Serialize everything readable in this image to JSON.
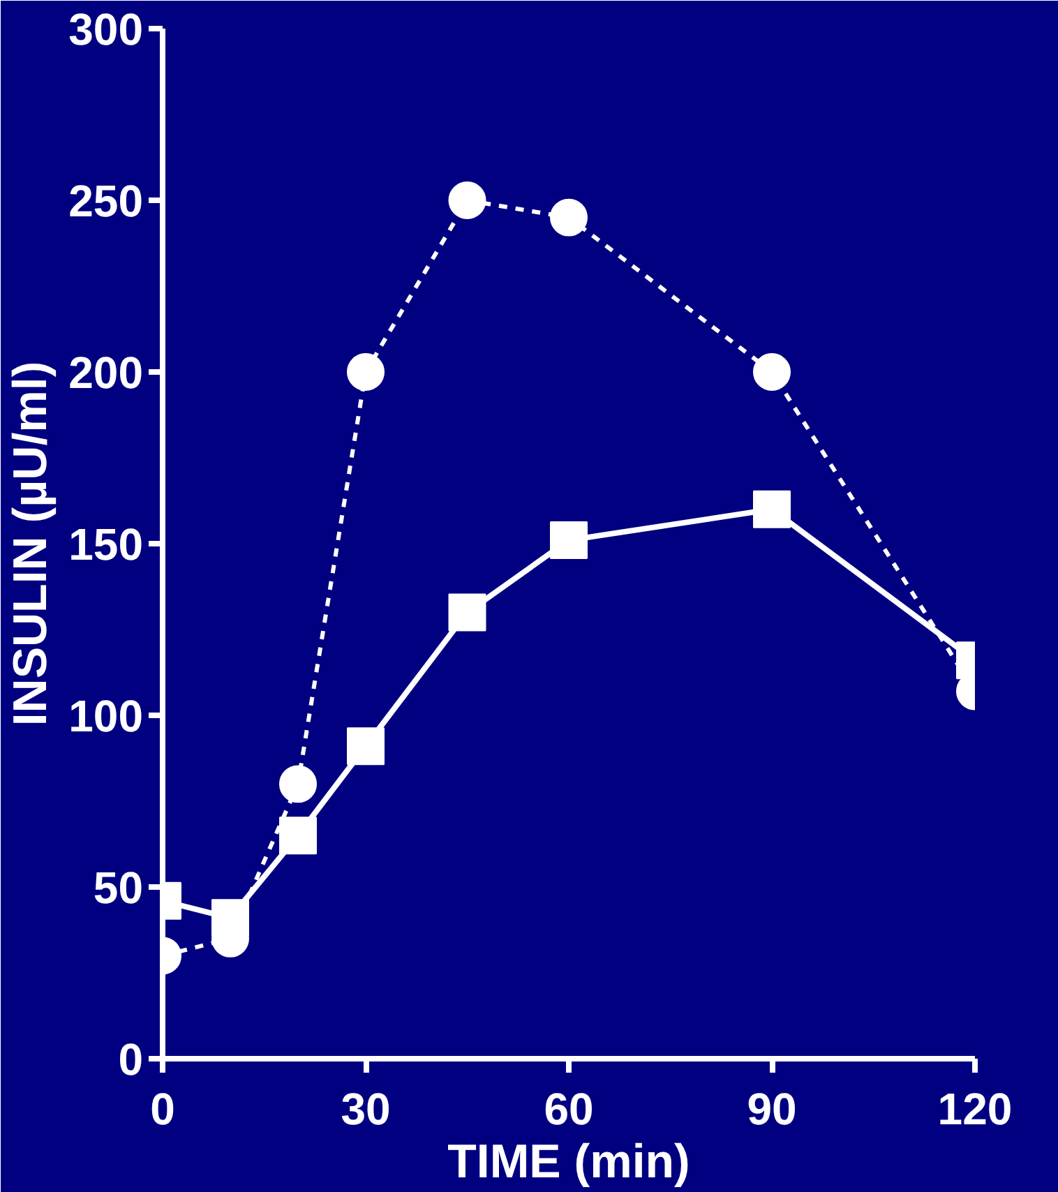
{
  "chart_data": {
    "type": "line",
    "xlabel": "TIME (min)",
    "ylabel": "INSULIN (µU/ml)",
    "xlim": [
      0,
      120
    ],
    "ylim": [
      0,
      300
    ],
    "xticks": [
      0,
      30,
      60,
      90,
      120
    ],
    "yticks": [
      0,
      50,
      100,
      150,
      200,
      250,
      300
    ],
    "grid": false,
    "series": [
      {
        "color": "#ffffff",
        "marker": "circle",
        "line_style": "dashed",
        "x": [
          0,
          10,
          20,
          30,
          45,
          60,
          90,
          120
        ],
        "values": [
          30,
          35,
          80,
          200,
          250,
          245,
          200,
          107
        ]
      },
      {
        "color": "#ffffff",
        "marker": "square",
        "line_style": "solid",
        "x": [
          0,
          10,
          20,
          30,
          45,
          60,
          90,
          120
        ],
        "values": [
          46,
          41,
          65,
          91,
          130,
          151,
          160,
          116
        ]
      }
    ]
  }
}
